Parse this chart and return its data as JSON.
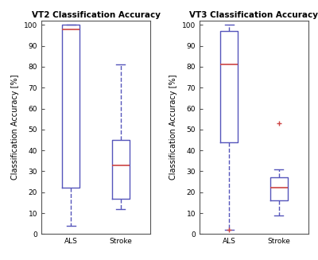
{
  "vt2": {
    "title": "VT2 Classification Accuracy",
    "groups": [
      "ALS",
      "Stroke"
    ],
    "boxes": [
      {
        "med": 98,
        "q1": 22,
        "q3": 100,
        "whislo": 4,
        "whishi": 100,
        "fliers": []
      },
      {
        "med": 33,
        "q1": 17,
        "q3": 45,
        "whislo": 12,
        "whishi": 81,
        "fliers": []
      }
    ]
  },
  "vt3": {
    "title": "VT3 Classification Accuracy",
    "groups": [
      "ALS",
      "Stroke"
    ],
    "boxes": [
      {
        "med": 81,
        "q1": 44,
        "q3": 97,
        "whislo": 2,
        "whishi": 100,
        "fliers": [
          2
        ]
      },
      {
        "med": 22,
        "q1": 16,
        "q3": 27,
        "whislo": 9,
        "whishi": 31,
        "fliers": [
          53
        ]
      }
    ]
  },
  "ylabel": "Classification Accuracy [%]",
  "ylim": [
    0,
    102
  ],
  "yticks": [
    0,
    10,
    20,
    30,
    40,
    50,
    60,
    70,
    80,
    90,
    100
  ],
  "box_color": "#5555bb",
  "median_color": "#cc4444",
  "flier_color": "#cc4444",
  "background": "#ffffff",
  "title_fontsize": 7.5,
  "label_fontsize": 7,
  "tick_fontsize": 6.5
}
